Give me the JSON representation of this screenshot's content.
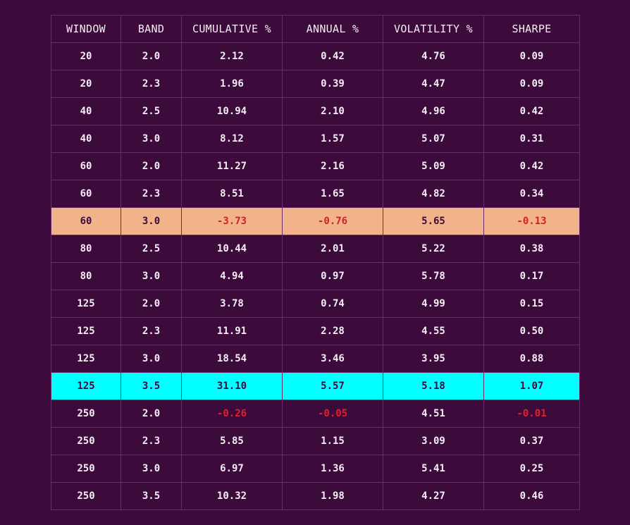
{
  "table": {
    "headers": [
      "WINDOW",
      "BAND",
      "CUMULATIVE %",
      "ANNUAL %",
      "VOLATILITY %",
      "SHARPE"
    ],
    "rows": [
      [
        "20",
        "2.0",
        "2.12",
        "0.42",
        "4.76",
        "0.09"
      ],
      [
        "20",
        "2.3",
        "1.96",
        "0.39",
        "4.47",
        "0.09"
      ],
      [
        "40",
        "2.5",
        "10.94",
        "2.10",
        "4.96",
        "0.42"
      ],
      [
        "40",
        "3.0",
        "8.12",
        "1.57",
        "5.07",
        "0.31"
      ],
      [
        "60",
        "2.0",
        "11.27",
        "2.16",
        "5.09",
        "0.42"
      ],
      [
        "60",
        "2.3",
        "8.51",
        "1.65",
        "4.82",
        "0.34"
      ],
      [
        "60",
        "3.0",
        "-3.73",
        "-0.76",
        "5.65",
        "-0.13"
      ],
      [
        "80",
        "2.5",
        "10.44",
        "2.01",
        "5.22",
        "0.38"
      ],
      [
        "80",
        "3.0",
        "4.94",
        "0.97",
        "5.78",
        "0.17"
      ],
      [
        "125",
        "2.0",
        "3.78",
        "0.74",
        "4.99",
        "0.15"
      ],
      [
        "125",
        "2.3",
        "11.91",
        "2.28",
        "4.55",
        "0.50"
      ],
      [
        "125",
        "3.0",
        "18.54",
        "3.46",
        "3.95",
        "0.88"
      ],
      [
        "125",
        "3.5",
        "31.10",
        "5.57",
        "5.18",
        "1.07"
      ],
      [
        "250",
        "2.0",
        "-0.26",
        "-0.05",
        "4.51",
        "-0.01"
      ],
      [
        "250",
        "2.3",
        "5.85",
        "1.15",
        "3.09",
        "0.37"
      ],
      [
        "250",
        "3.0",
        "6.97",
        "1.36",
        "5.41",
        "0.25"
      ],
      [
        "250",
        "3.5",
        "10.32",
        "1.98",
        "4.27",
        "0.46"
      ]
    ],
    "highlight_worst_row": 6,
    "highlight_best_row": 12
  },
  "colors": {
    "background": "#3c0b3c",
    "grid": "#6a2b6a",
    "text": "#f5eef5",
    "negative": "#e0202a",
    "worst_row_bg": "#f2b38a",
    "best_row_bg": "#00ffff",
    "highlight_text": "#3c0b3c"
  }
}
